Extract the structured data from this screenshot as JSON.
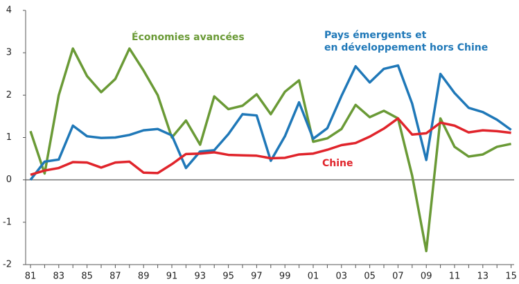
{
  "chart_data": {
    "type": "line",
    "categories": [
      "81",
      null,
      "83",
      null,
      "85",
      null,
      "87",
      null,
      "89",
      null,
      "91",
      null,
      "93",
      null,
      "95",
      null,
      "97",
      null,
      "99",
      null,
      "01",
      null,
      "03",
      null,
      "05",
      null,
      "07",
      null,
      "09",
      null,
      "11",
      null,
      "13",
      null,
      "15"
    ],
    "ylim": [
      -2,
      4
    ],
    "yticks": [
      -2,
      -1,
      0,
      1,
      2,
      3,
      4
    ],
    "series": [
      {
        "name": "Économies avancées",
        "color": "#6a9a36",
        "values": [
          1.15,
          0.15,
          2.0,
          3.1,
          2.45,
          2.07,
          2.38,
          3.1,
          2.58,
          2.0,
          1.0,
          1.4,
          0.83,
          1.97,
          1.67,
          1.75,
          2.02,
          1.55,
          2.08,
          2.35,
          0.9,
          0.98,
          1.2,
          1.77,
          1.48,
          1.63,
          1.45,
          0.1,
          -1.68,
          1.45,
          0.78,
          0.55,
          0.6,
          0.78,
          0.85
        ]
      },
      {
        "name": "Pays émergents et\nen développement hors Chine",
        "color": "#1f78b8",
        "values": [
          0.0,
          0.43,
          0.48,
          1.28,
          1.03,
          0.99,
          1.0,
          1.06,
          1.17,
          1.2,
          1.05,
          0.28,
          0.67,
          0.7,
          1.08,
          1.55,
          1.52,
          0.45,
          1.03,
          1.83,
          0.97,
          1.22,
          1.98,
          2.68,
          2.3,
          2.62,
          2.7,
          1.8,
          0.47,
          2.5,
          2.05,
          1.7,
          1.6,
          1.42,
          1.18
        ]
      },
      {
        "name": "Chine",
        "color": "#e0242b",
        "values": [
          0.12,
          0.22,
          0.28,
          0.42,
          0.41,
          0.29,
          0.41,
          0.43,
          0.17,
          0.16,
          0.37,
          0.61,
          0.62,
          0.65,
          0.59,
          0.58,
          0.57,
          0.51,
          0.52,
          0.6,
          0.62,
          0.71,
          0.82,
          0.87,
          1.02,
          1.21,
          1.45,
          1.07,
          1.1,
          1.35,
          1.28,
          1.12,
          1.17,
          1.15,
          1.11
        ]
      }
    ]
  }
}
